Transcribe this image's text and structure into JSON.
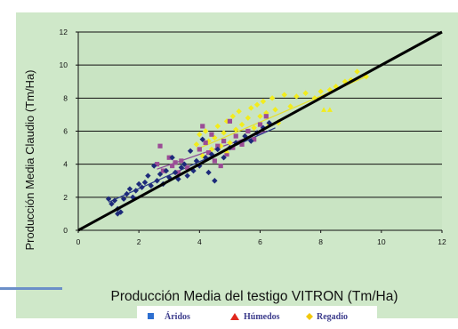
{
  "colors": {
    "panel_bg": "#cfe8c9",
    "plot_bg": "#c9e4c3",
    "aridos": "#1d2a7a",
    "humedos": "#9b4d96",
    "regadio": "#f2ec1c",
    "legend_aridos_marker": "#2e6fd0",
    "legend_humedos_marker": "#e0281e",
    "legend_regadio_marker": "#f2c80a",
    "line": "#000000"
  },
  "chart_data": {
    "type": "scatter",
    "title": "",
    "xlabel": "Producción Media del testigo VITRON (Tm/Ha)",
    "ylabel": "Producción Media Claudio (Tm/Ha)",
    "xlim": [
      0,
      12
    ],
    "ylim": [
      0,
      12
    ],
    "xticks": [
      "0",
      "2",
      "4",
      "6",
      "8",
      "10",
      "12"
    ],
    "yticks": [
      "0",
      "2",
      "4",
      "6",
      "8",
      "10",
      "12"
    ],
    "grid": "horizontal",
    "legend_placement": "bottom",
    "reference_line": {
      "x": [
        0,
        12
      ],
      "y": [
        0,
        12
      ]
    },
    "series": [
      {
        "name": "Áridos",
        "marker": "diamond",
        "points": [
          [
            1.0,
            1.9
          ],
          [
            1.1,
            1.6
          ],
          [
            1.2,
            1.8
          ],
          [
            1.3,
            1.3
          ],
          [
            1.3,
            1.0
          ],
          [
            1.4,
            1.1
          ],
          [
            1.5,
            1.9
          ],
          [
            1.6,
            2.2
          ],
          [
            1.7,
            2.5
          ],
          [
            1.8,
            2.0
          ],
          [
            1.9,
            2.4
          ],
          [
            2.0,
            2.8
          ],
          [
            2.1,
            2.6
          ],
          [
            2.2,
            2.9
          ],
          [
            2.3,
            3.3
          ],
          [
            2.4,
            2.7
          ],
          [
            2.5,
            3.9
          ],
          [
            2.6,
            3.0
          ],
          [
            2.7,
            3.4
          ],
          [
            2.8,
            2.8
          ],
          [
            2.9,
            3.6
          ],
          [
            3.0,
            3.2
          ],
          [
            3.1,
            4.4
          ],
          [
            3.2,
            3.5
          ],
          [
            3.3,
            3.1
          ],
          [
            3.4,
            3.8
          ],
          [
            3.5,
            4.0
          ],
          [
            3.6,
            3.3
          ],
          [
            3.7,
            4.8
          ],
          [
            3.8,
            3.6
          ],
          [
            3.9,
            4.2
          ],
          [
            4.0,
            3.9
          ],
          [
            4.1,
            5.5
          ],
          [
            4.2,
            4.4
          ],
          [
            4.3,
            3.5
          ],
          [
            4.4,
            4.6
          ],
          [
            4.5,
            3.0
          ],
          [
            4.6,
            4.9
          ],
          [
            4.8,
            4.4
          ],
          [
            5.0,
            5.0
          ],
          [
            5.2,
            5.3
          ],
          [
            5.5,
            5.7
          ],
          [
            5.7,
            5.4
          ],
          [
            5.9,
            5.9
          ],
          [
            6.1,
            6.2
          ],
          [
            6.3,
            6.5
          ]
        ],
        "trend": {
          "x": [
            1.0,
            6.5
          ],
          "y": [
            1.7,
            6.2
          ]
        }
      },
      {
        "name": "Húmedos",
        "marker": "square",
        "points": [
          [
            2.6,
            4.0
          ],
          [
            2.7,
            5.1
          ],
          [
            2.8,
            3.6
          ],
          [
            3.0,
            4.4
          ],
          [
            3.1,
            3.9
          ],
          [
            3.2,
            4.1
          ],
          [
            3.3,
            3.5
          ],
          [
            3.4,
            4.2
          ],
          [
            3.6,
            3.8
          ],
          [
            4.0,
            4.9
          ],
          [
            4.1,
            6.3
          ],
          [
            4.2,
            5.3
          ],
          [
            4.3,
            4.7
          ],
          [
            4.4,
            5.8
          ],
          [
            4.5,
            4.2
          ],
          [
            4.6,
            5.1
          ],
          [
            4.7,
            3.9
          ],
          [
            4.8,
            5.4
          ],
          [
            4.9,
            4.6
          ],
          [
            5.0,
            6.6
          ],
          [
            5.1,
            5.0
          ],
          [
            5.2,
            5.7
          ],
          [
            5.4,
            5.2
          ],
          [
            5.6,
            6.0
          ],
          [
            5.8,
            5.5
          ],
          [
            6.0,
            6.4
          ],
          [
            6.2,
            6.9
          ]
        ],
        "trend": {
          "x": [
            2.6,
            6.2
          ],
          "y": [
            3.7,
            6.0
          ]
        }
      },
      {
        "name": "Regadío",
        "marker": "diamond",
        "points": [
          [
            3.9,
            5.2
          ],
          [
            4.0,
            5.8
          ],
          [
            4.1,
            4.5
          ],
          [
            4.2,
            6.0
          ],
          [
            4.3,
            5.4
          ],
          [
            4.4,
            4.9
          ],
          [
            4.5,
            5.6
          ],
          [
            4.6,
            6.3
          ],
          [
            4.7,
            5.1
          ],
          [
            4.8,
            5.9
          ],
          [
            4.9,
            6.6
          ],
          [
            5.0,
            5.3
          ],
          [
            5.1,
            6.9
          ],
          [
            5.2,
            6.1
          ],
          [
            5.3,
            7.2
          ],
          [
            5.4,
            6.4
          ],
          [
            5.5,
            5.7
          ],
          [
            5.6,
            6.8
          ],
          [
            5.7,
            7.4
          ],
          [
            5.8,
            6.2
          ],
          [
            5.9,
            7.6
          ],
          [
            6.0,
            6.9
          ],
          [
            6.1,
            7.8
          ],
          [
            6.2,
            7.1
          ],
          [
            6.3,
            6.4
          ],
          [
            6.4,
            8.0
          ],
          [
            6.5,
            7.3
          ],
          [
            6.6,
            6.5
          ],
          [
            6.8,
            8.2
          ],
          [
            7.0,
            7.5
          ],
          [
            7.2,
            8.1
          ],
          [
            7.5,
            8.3
          ],
          [
            7.8,
            8.0
          ],
          [
            8.0,
            8.4
          ],
          [
            8.3,
            8.5
          ],
          [
            8.5,
            8.7
          ],
          [
            8.8,
            9.0
          ],
          [
            9.0,
            9.1
          ],
          [
            9.2,
            9.6
          ],
          [
            9.5,
            9.3
          ]
        ],
        "trend": {
          "x": [
            3.9,
            9.5
          ],
          "y": [
            4.9,
            9.3
          ]
        }
      },
      {
        "name": "Húmedos",
        "marker": "triangle",
        "points": [
          [
            4.9,
            4.8
          ],
          [
            6.6,
            6.6
          ],
          [
            8.1,
            7.3
          ],
          [
            8.3,
            7.3
          ]
        ]
      }
    ]
  },
  "legend": {
    "aridos": "Áridos",
    "humedos": "Húmedos",
    "regadio": "Regadío"
  }
}
